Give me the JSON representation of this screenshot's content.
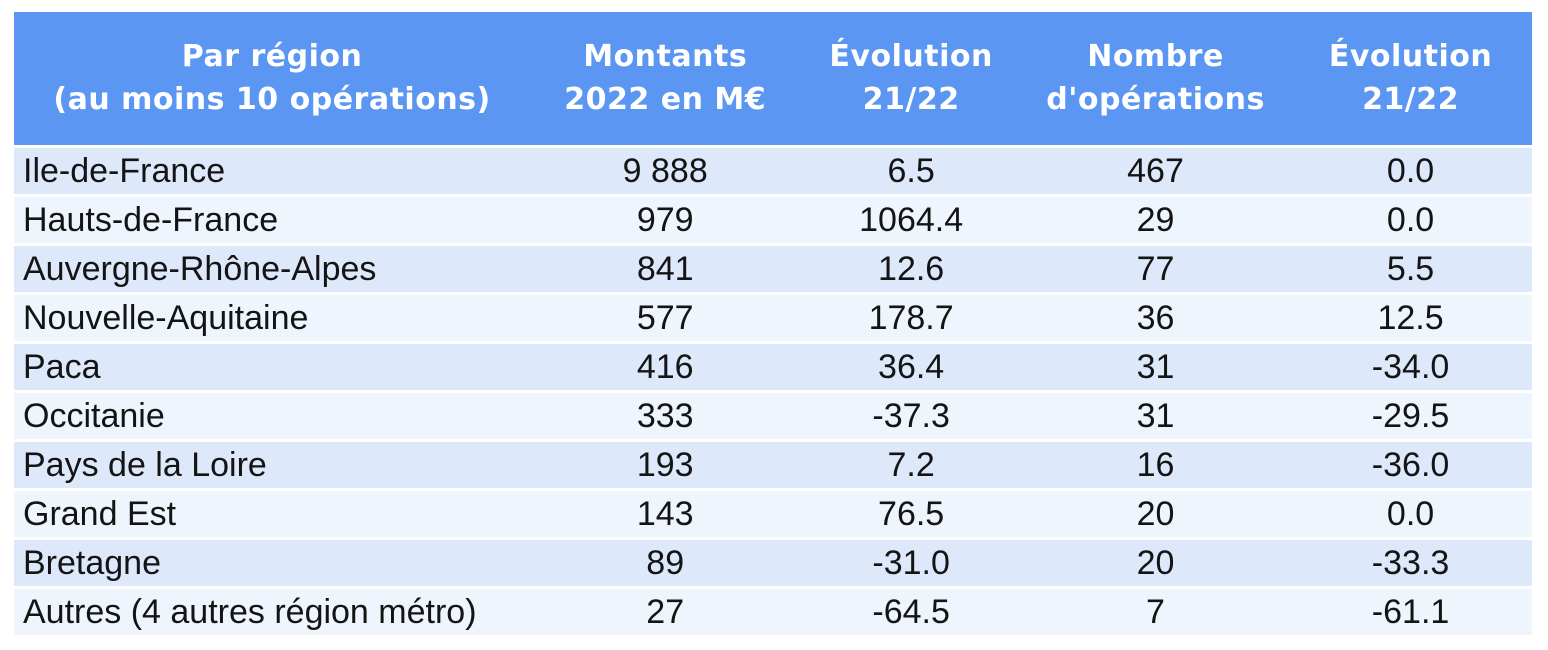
{
  "colors": {
    "header_bg": "#5b96f2",
    "row_odd": "#dde9fb",
    "row_even": "#eef5fd",
    "header_text": "#ffffff",
    "body_text": "#141414",
    "page_bg": "#ffffff"
  },
  "chart_data": {
    "type": "table",
    "title": "Par région (au moins 10 opérations)",
    "columns": [
      {
        "key": "region",
        "label": "Par région\n(au moins 10 opérations)"
      },
      {
        "key": "montants-2022-meur",
        "label": "Montants\n2022 en M€"
      },
      {
        "key": "evolution-21-22-montants",
        "label": "Évolution\n21/22"
      },
      {
        "key": "nombre-operations",
        "label": "Nombre\nd'opérations"
      },
      {
        "key": "evolution-21-22-operations",
        "label": "Évolution\n21/22"
      }
    ],
    "rows": [
      [
        "Ile-de-France",
        "9 888",
        "6.5",
        "467",
        "0.0"
      ],
      [
        "Hauts-de-France",
        "979",
        "1064.4",
        "29",
        "0.0"
      ],
      [
        "Auvergne-Rhône-Alpes",
        "841",
        "12.6",
        "77",
        "5.5"
      ],
      [
        "Nouvelle-Aquitaine",
        "577",
        "178.7",
        "36",
        "12.5"
      ],
      [
        "Paca",
        "416",
        "36.4",
        "31",
        "-34.0"
      ],
      [
        "Occitanie",
        "333",
        "-37.3",
        "31",
        "-29.5"
      ],
      [
        "Pays de la Loire",
        "193",
        "7.2",
        "16",
        "-36.0"
      ],
      [
        "Grand Est",
        "143",
        "76.5",
        "20",
        "0.0"
      ],
      [
        "Bretagne",
        "89",
        "-31.0",
        "20",
        "-33.3"
      ],
      [
        "Autres (4 autres région métro)",
        "27",
        "-64.5",
        "7",
        "-61.1"
      ]
    ]
  }
}
